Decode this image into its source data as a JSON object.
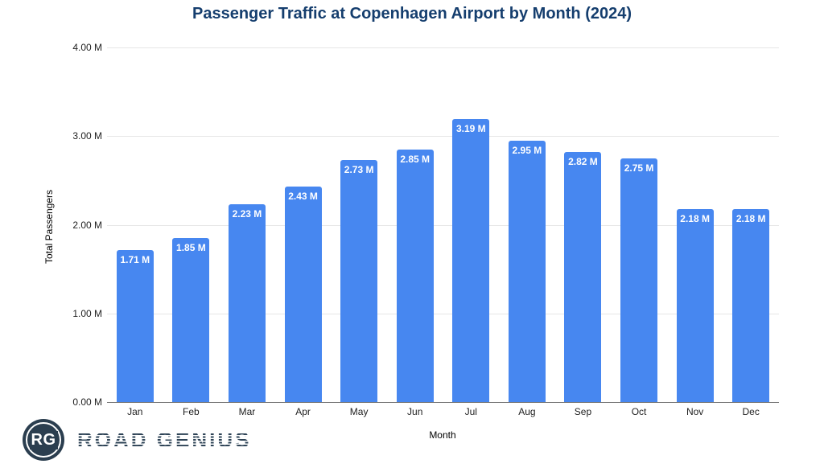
{
  "chart_data": {
    "type": "bar",
    "title": "Passenger Traffic at Copenhagen Airport by Month (2024)",
    "xlabel": "Month",
    "ylabel": "Total Passengers",
    "categories": [
      "Jan",
      "Feb",
      "Mar",
      "Apr",
      "May",
      "Jun",
      "Jul",
      "Aug",
      "Sep",
      "Oct",
      "Nov",
      "Dec"
    ],
    "values": [
      1.71,
      1.85,
      2.23,
      2.43,
      2.73,
      2.85,
      3.19,
      2.95,
      2.82,
      2.75,
      2.18,
      2.18
    ],
    "value_labels": [
      "1.71 M",
      "1.85 M",
      "2.23 M",
      "2.43 M",
      "2.73 M",
      "2.85 M",
      "3.19 M",
      "2.95 M",
      "2.82 M",
      "2.75 M",
      "2.18 M",
      "2.18 M"
    ],
    "value_unit": "M",
    "y_ticks": [
      "0.00 M",
      "1.00 M",
      "2.00 M",
      "3.00 M",
      "4.00 M"
    ],
    "ylim": [
      0,
      4
    ],
    "grid": true,
    "legend_position": "none",
    "bar_color": "#4787f0",
    "bar_label_color": "#ffffff",
    "gridline_color": "#e6e6e6",
    "baseline_color": "#777777",
    "title_color": "#153e6e"
  },
  "branding": {
    "monogram": "RG",
    "name": "ROAD GENIUS",
    "logo_color": "#2b3e4f"
  }
}
